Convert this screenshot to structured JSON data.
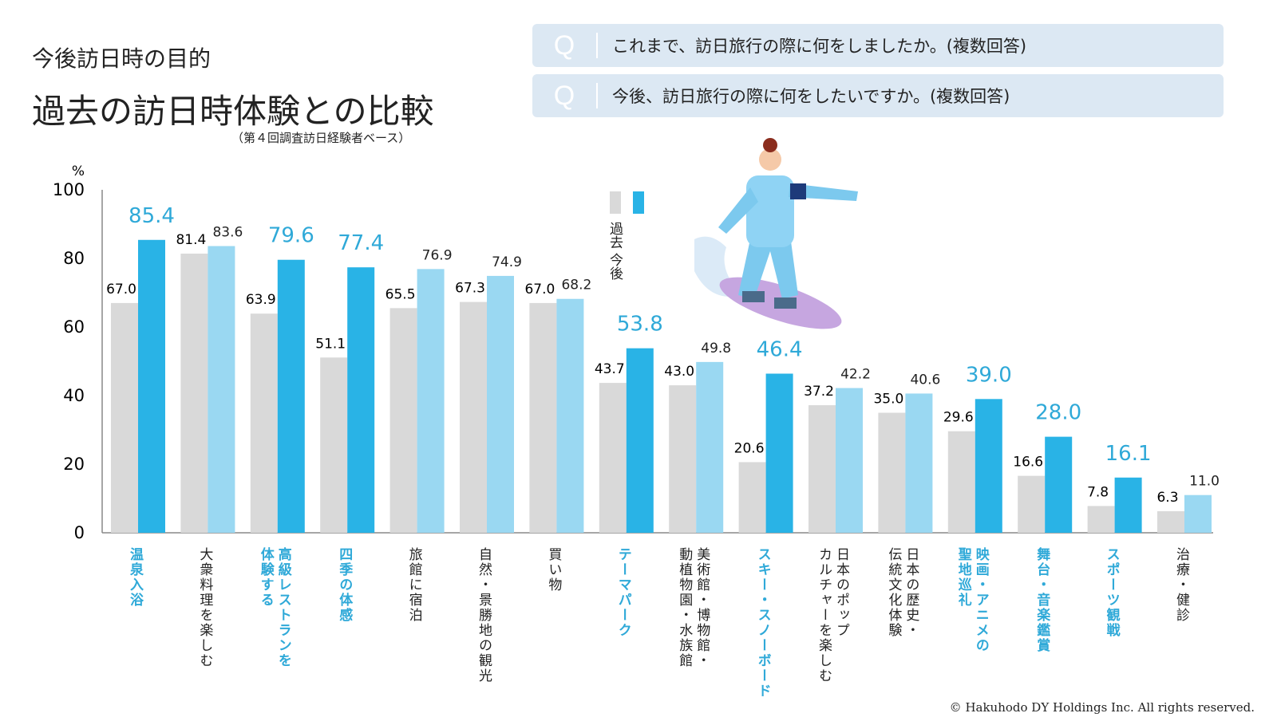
{
  "header": {
    "subtitle": "今後訪日時の目的",
    "title": "過去の訪日時体験との比較",
    "base": "（第４回調査訪日経験者ベース）"
  },
  "questions": [
    {
      "mark": "Q",
      "text": "これまで、訪日旅行の際に何をしましたか。(複数回答)"
    },
    {
      "mark": "Q",
      "text": "今後、訪日旅行の際に何をしたいですか。(複数回答)"
    }
  ],
  "colors": {
    "past": "#d9d9d9",
    "future_highlight": "#29b3e6",
    "future": "#9ad8f2",
    "highlight_text": "#2fa9d8"
  },
  "chart_data": {
    "type": "bar",
    "ylabel": "%",
    "ylim": [
      0,
      100
    ],
    "yticks": [
      0,
      20,
      40,
      60,
      80,
      100
    ],
    "legend": {
      "placement": "top-center",
      "entries": [
        "過去",
        "今後"
      ]
    },
    "categories": [
      "温泉入浴",
      "大衆料理を楽しむ",
      "高級レストランを\n体験する",
      "四季の体感",
      "旅館に宿泊",
      "自然・景勝地の観光",
      "買い物",
      "テーマパーク",
      "美術館・博物館・\n動植物園・水族館",
      "スキー・スノーボード",
      "日本のポップ\nカルチャーを楽しむ",
      "日本の歴史・\n伝統文化体験",
      "映画・アニメの\n聖地巡礼",
      "舞台・音楽鑑賞",
      "スポーツ観戦",
      "治療・健診"
    ],
    "highlighted": [
      true,
      false,
      true,
      true,
      false,
      false,
      false,
      true,
      false,
      true,
      false,
      false,
      true,
      true,
      true,
      false
    ],
    "series": [
      {
        "name": "過去",
        "values": [
          67.0,
          81.4,
          63.9,
          51.1,
          65.5,
          67.3,
          67.0,
          43.7,
          43.0,
          20.6,
          37.2,
          35.0,
          29.6,
          16.6,
          7.8,
          6.3
        ]
      },
      {
        "name": "今後",
        "values": [
          85.4,
          83.6,
          79.6,
          77.4,
          76.9,
          74.9,
          68.2,
          53.8,
          49.8,
          46.4,
          42.2,
          40.6,
          39.0,
          28.0,
          16.1,
          11.0
        ]
      }
    ]
  },
  "footer": {
    "copyright": "© Hakuhodo DY Holdings Inc. All rights reserved."
  }
}
